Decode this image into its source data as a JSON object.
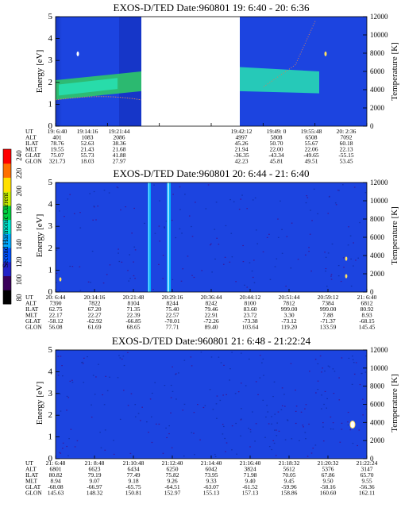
{
  "colorbar": {
    "label": "Second Harmonic Current",
    "ticks": [
      "80",
      "100",
      "120",
      "140",
      "160",
      "180",
      "200",
      "220",
      "240"
    ],
    "colors": [
      "#000000",
      "#3a005a",
      "#2222c8",
      "#0050ff",
      "#00aaff",
      "#00e8d0",
      "#00d040",
      "#c8f000",
      "#ffe000",
      "#ff7000",
      "#ff0000"
    ]
  },
  "colors": {
    "background_plasma": "#1c44e0",
    "plasma_edge": "#1636c8",
    "band_bright": "#28e0b0",
    "band_green": "#30d060",
    "temperature_trace": "#d08060"
  },
  "chart_data": [
    {
      "type": "heatmap",
      "title": "EXOS-D/TED   Date:960801  19: 6:40 - 20: 6:36",
      "ylabel_left": "Energy [eV]",
      "ylabel_right": "Temperature [K]",
      "y_ticks": [
        "0",
        "1",
        "2",
        "3",
        "4",
        "5"
      ],
      "ylim_left": [
        0,
        5
      ],
      "y2_ticks": [
        "0",
        "2000",
        "4000",
        "6000",
        "8000",
        "10000",
        "12000"
      ],
      "ylim_right": [
        0,
        12000
      ],
      "data_gap": [
        "19:22:00",
        "19:42:12"
      ],
      "band_energy_ev": [
        1.5,
        2.2
      ],
      "columns": [
        "UT",
        "ALT",
        "ILAT",
        "MLT",
        "GLAT",
        "GLON"
      ],
      "rows": [
        [
          "19: 6:40",
          "401",
          "78.76",
          "19.55",
          "75.07",
          "321.73"
        ],
        [
          "19:14:16",
          "1083",
          "52.63",
          "21.43",
          "55.73",
          "18.03"
        ],
        [
          "19:21:44",
          "2086",
          "38.36",
          "21.68",
          "41.88",
          "27.97"
        ],
        [
          "19:42:12",
          "4997",
          "45.26",
          "21.94",
          "-36.35",
          "42.23"
        ],
        [
          "19:49: 0",
          "5808",
          "50.70",
          "22.00",
          "-43.34",
          "45.81"
        ],
        [
          "19:55:48",
          "6508",
          "55.67",
          "22.06",
          "-49.65",
          "49.51"
        ],
        [
          "20: 2:36",
          "7092",
          "60.18",
          "22.13",
          "-55.15",
          "53.45"
        ]
      ]
    },
    {
      "type": "heatmap",
      "title": "EXOS-D/TED   Date:960801  20: 6:44 - 21: 6:40",
      "ylabel_left": "Energy [eV]",
      "ylabel_right": "Temperature [K]",
      "y_ticks": [
        "0",
        "1",
        "2",
        "3",
        "4",
        "5"
      ],
      "ylim_left": [
        0,
        5
      ],
      "y2_ticks": [
        "0",
        "2000",
        "4000",
        "6000",
        "8000",
        "10000",
        "12000"
      ],
      "ylim_right": [
        0,
        12000
      ],
      "columns": [
        "UT",
        "ALT",
        "ILAT",
        "MLT",
        "GLAT",
        "GLON"
      ],
      "rows": [
        [
          "20: 6:44",
          "7390",
          "62.75",
          "22.17",
          "-58.12",
          "56.08"
        ],
        [
          "20:14:16",
          "7822",
          "67.20",
          "22.27",
          "-62.92",
          "61.69"
        ],
        [
          "20:21:48",
          "8104",
          "71.35",
          "22.39",
          "-66.85",
          "68.65"
        ],
        [
          "20:29:16",
          "8244",
          "75.40",
          "22.57",
          "-70.01",
          "77.71"
        ],
        [
          "20:36:44",
          "8242",
          "79.46",
          "22.91",
          "-72.26",
          "89.40"
        ],
        [
          "20:44:12",
          "8100",
          "83.60",
          "23.72",
          "-73.38",
          "103.64"
        ],
        [
          "20:51:44",
          "7812",
          "999.00",
          "3.30",
          "-73.12",
          "119.20"
        ],
        [
          "20:59:12",
          "7384",
          "999.00",
          "7.88",
          "-71.37",
          "133.59"
        ],
        [
          "21: 6:40",
          "6812",
          "80.92",
          "8.93",
          "-68.15",
          "145.45"
        ]
      ]
    },
    {
      "type": "heatmap",
      "title": "EXOS-D/TED   Date:960801  21: 6:48 - 21:22:24",
      "ylabel_left": "Energy [eV]",
      "ylabel_right": "Temperature [K]",
      "y_ticks": [
        "0",
        "1",
        "2",
        "3",
        "4",
        "5"
      ],
      "ylim_left": [
        0,
        5
      ],
      "y2_ticks": [
        "0",
        "2000",
        "4000",
        "6000",
        "8000",
        "10000",
        "12000"
      ],
      "ylim_right": [
        0,
        12000
      ],
      "columns": [
        "UT",
        "ALT",
        "ILAT",
        "MLT",
        "GLAT",
        "GLON"
      ],
      "rows": [
        [
          "21: 6:48",
          "6801",
          "80.82",
          "8.94",
          "-68.08",
          "145.63"
        ],
        [
          "21: 8:48",
          "6623",
          "79.19",
          "9.07",
          "-66.97",
          "148.32"
        ],
        [
          "21:10:48",
          "6434",
          "77.49",
          "9.18",
          "-65.75",
          "150.81"
        ],
        [
          "21:12:40",
          "6250",
          "75.82",
          "9.26",
          "-64.51",
          "152.97"
        ],
        [
          "21:14:40",
          "6042",
          "73.95",
          "9.33",
          "-63.07",
          "155.13"
        ],
        [
          "21:16:40",
          "3824",
          "71.98",
          "9.40",
          "-61.52",
          "157.13"
        ],
        [
          "21:18:32",
          "5612",
          "70.05",
          "9.45",
          "-59.96",
          "158.86"
        ],
        [
          "21:20:32",
          "5376",
          "67.86",
          "9.50",
          "-58.16",
          "160.60"
        ],
        [
          "21:22:24",
          "3147",
          "65.70",
          "9.55",
          "-56.36",
          "162.11"
        ]
      ]
    }
  ]
}
